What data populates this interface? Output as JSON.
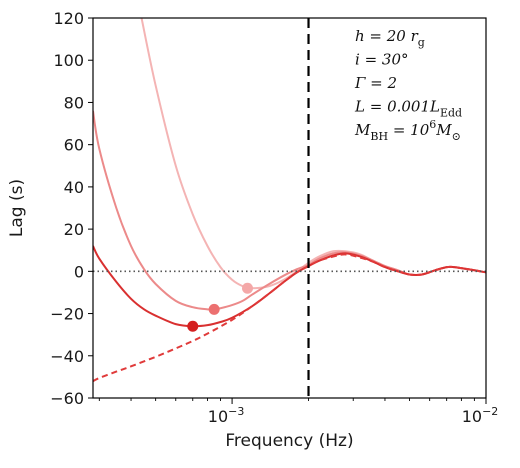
{
  "chart_data": {
    "type": "line",
    "xlabel": "Frequency (Hz)",
    "ylabel": "Lag (s)",
    "xscale": "log",
    "xlim": [
      0.0002833,
      0.01
    ],
    "ylim": [
      -60,
      120
    ],
    "x_ticks": [
      {
        "value": 0.001,
        "base": "10",
        "exp": "−3"
      },
      {
        "value": 0.01,
        "base": "10",
        "exp": "−2"
      }
    ],
    "y_ticks": [
      -60,
      -40,
      -20,
      0,
      20,
      40,
      60,
      80,
      100,
      120
    ],
    "vline": {
      "x": 0.002,
      "style": "dashed",
      "color": "#000000"
    },
    "hline": {
      "y": 0,
      "style": "dotted",
      "color": "#555555"
    },
    "legend_position": "top-right",
    "annotations": [
      {
        "lines": [
          "h = 20 r",
          "g"
        ]
      },
      {
        "lines": [
          "i = 30°"
        ]
      },
      {
        "lines": [
          "Γ = 2"
        ]
      },
      {
        "lines": [
          "L = 0.001L",
          "Edd"
        ]
      },
      {
        "lines": [
          "M",
          "BH",
          " = 10",
          "6",
          "M",
          "⊙"
        ]
      }
    ],
    "series": [
      {
        "color": "#f4b4b4",
        "style": "solid",
        "x": [
          0.00044,
          0.0005,
          0.0006,
          0.0007,
          0.0008,
          0.0009,
          0.001,
          0.0011,
          0.0012,
          0.0014,
          0.0016,
          0.0018,
          0.002,
          0.0022,
          0.0025,
          0.0028,
          0.0032,
          0.0036,
          0.004,
          0.0045,
          0.005,
          0.0056,
          0.0063,
          0.007,
          0.0075,
          0.008,
          0.009,
          0.01
        ],
        "y": [
          120,
          88,
          50,
          27,
          12,
          2,
          -4,
          -7,
          -8,
          -7,
          -4,
          0,
          4,
          7,
          9.5,
          9.5,
          8,
          5,
          2.5,
          0.5,
          -1.5,
          -1.5,
          0.5,
          2,
          2,
          1.5,
          0.5,
          -0.5
        ]
      },
      {
        "color": "#ec8a8a",
        "style": "solid",
        "x": [
          0.0002833,
          0.0003,
          0.00035,
          0.0004,
          0.00045,
          0.0005,
          0.0006,
          0.0007,
          0.0008,
          0.00085,
          0.0009,
          0.001,
          0.0011,
          0.0012,
          0.0014,
          0.0016,
          0.0018,
          0.002,
          0.0022,
          0.0025,
          0.0028,
          0.0032,
          0.0036,
          0.004,
          0.0045,
          0.005,
          0.0056,
          0.0063,
          0.007,
          0.0075,
          0.008,
          0.009,
          0.01
        ],
        "y": [
          76,
          58,
          30,
          12,
          1,
          -6,
          -14,
          -17,
          -18,
          -18,
          -17.5,
          -16,
          -14,
          -11,
          -6,
          -2,
          1,
          3,
          6,
          8.5,
          9,
          7.5,
          5,
          2.5,
          0.5,
          -1.5,
          -1.5,
          0.5,
          2,
          2,
          1.5,
          0.5,
          -0.5
        ]
      },
      {
        "color": "#d93030",
        "style": "solid",
        "x": [
          0.0002833,
          0.0003,
          0.00035,
          0.0004,
          0.00045,
          0.0005,
          0.0006,
          0.0007,
          0.0008,
          0.0009,
          0.001,
          0.0012,
          0.0014,
          0.0016,
          0.0018,
          0.002,
          0.0022,
          0.0025,
          0.0028,
          0.0032,
          0.0036,
          0.004,
          0.0045,
          0.005,
          0.0056,
          0.0063,
          0.007,
          0.0075,
          0.008,
          0.009,
          0.01
        ],
        "y": [
          12,
          6,
          -5,
          -13,
          -18,
          -21,
          -25,
          -26,
          -25.5,
          -24,
          -22,
          -16.5,
          -10.5,
          -5,
          -0.5,
          2.5,
          5,
          7.5,
          8.5,
          7,
          4.5,
          2,
          0,
          -1.5,
          -1.5,
          0.5,
          2,
          2,
          1.5,
          0.5,
          -0.5
        ]
      },
      {
        "color": "#e03a3a",
        "style": "dashed",
        "x": [
          0.0002833,
          0.0003,
          0.00035,
          0.0004,
          0.0005,
          0.0006,
          0.0007,
          0.0008,
          0.001,
          0.0012,
          0.0014,
          0.0016,
          0.0018,
          0.002,
          0.0022,
          0.0025,
          0.0028,
          0.0032,
          0.0036,
          0.004,
          0.0045,
          0.005,
          0.0056,
          0.0063,
          0.007,
          0.0075,
          0.008,
          0.009,
          0.01
        ],
        "y": [
          -52,
          -50.5,
          -47.5,
          -45,
          -40.5,
          -36.5,
          -33,
          -29.5,
          -23,
          -16.5,
          -10.5,
          -5,
          -0.5,
          2.5,
          5,
          7,
          8,
          6.5,
          4.5,
          2,
          0,
          -1.5,
          -1.5,
          0.5,
          2,
          2,
          1.5,
          0.5,
          -0.5
        ]
      }
    ],
    "markers": [
      {
        "x": 0.00115,
        "y": -8,
        "color": "#f4a8a8"
      },
      {
        "x": 0.00085,
        "y": -18,
        "color": "#ec7070"
      },
      {
        "x": 0.0007,
        "y": -26,
        "color": "#d42020"
      }
    ]
  }
}
